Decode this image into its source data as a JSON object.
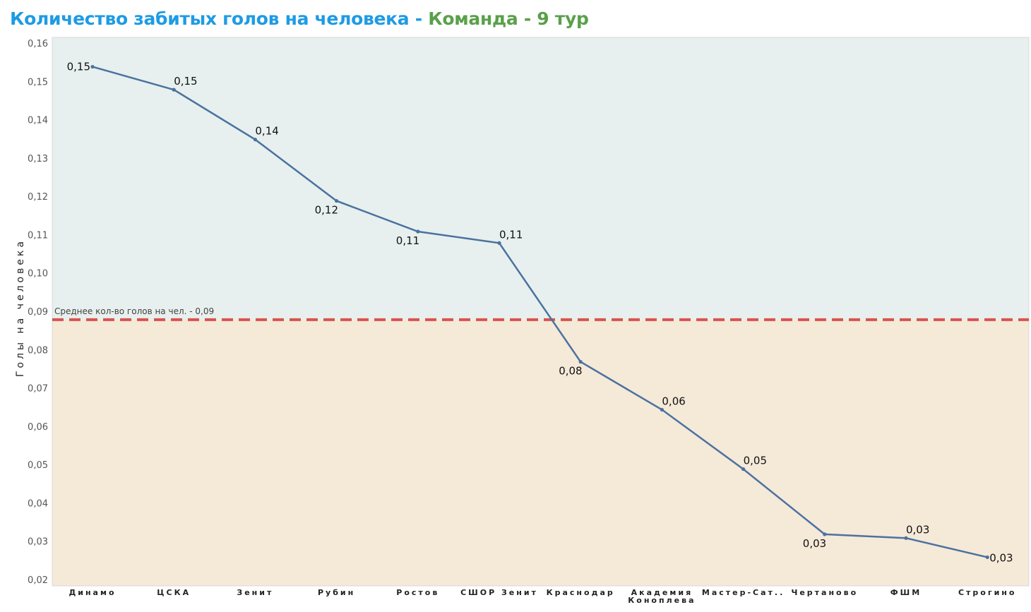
{
  "title": {
    "main": "Количество забитых голов на человека",
    "separator": " - ",
    "sub": "Команда - 9 тур"
  },
  "colors": {
    "title_main": "#1e9be4",
    "title_sub": "#5aa04a",
    "line": "#4a72a0",
    "reference_line": "#d9534f",
    "band_above": "#e7f0ee",
    "band_below": "#f5e9d8"
  },
  "chart_data": {
    "type": "line",
    "ylabel": "Голы на человека",
    "xlabel": "",
    "ylim": [
      0.02,
      0.16
    ],
    "yticks": [
      "0,02",
      "0,03",
      "0,04",
      "0,05",
      "0,06",
      "0,07",
      "0,08",
      "0,09",
      "0,10",
      "0,11",
      "0,12",
      "0,13",
      "0,14",
      "0,15",
      "0,16"
    ],
    "ytick_values": [
      0.02,
      0.03,
      0.04,
      0.05,
      0.06,
      0.07,
      0.08,
      0.09,
      0.1,
      0.11,
      0.12,
      0.13,
      0.14,
      0.15,
      0.16
    ],
    "categories": [
      "Динамо",
      "ЦСКА",
      "Зенит",
      "Рубин",
      "Ростов",
      "СШОР Зенит",
      "Краснодар",
      "Академия Коноплева",
      "Мастер-Сат..",
      "Чертаново",
      "ФШМ",
      "Строгино"
    ],
    "category_lines": [
      [
        "Динамо"
      ],
      [
        "ЦСКА"
      ],
      [
        "Зенит"
      ],
      [
        "Рубин"
      ],
      [
        "Ростов"
      ],
      [
        "СШОР Зенит"
      ],
      [
        "Краснодар"
      ],
      [
        "Академия",
        "Коноплева"
      ],
      [
        "Мастер-Сат.."
      ],
      [
        "Чертаново"
      ],
      [
        "ФШМ"
      ],
      [
        "Строгино"
      ]
    ],
    "values": [
      0.154,
      0.148,
      0.135,
      0.119,
      0.111,
      0.108,
      0.077,
      0.0645,
      0.049,
      0.032,
      0.031,
      0.026
    ],
    "data_labels": [
      "0,15",
      "0,15",
      "0,14",
      "0,12",
      "0,11",
      "0,11",
      "0,08",
      "0,06",
      "0,05",
      "0,03",
      "0,03",
      "0,03"
    ],
    "label_positions": [
      "left",
      "above",
      "above",
      "below",
      "below",
      "above",
      "below",
      "above",
      "above",
      "below",
      "above",
      "right"
    ],
    "reference_line": {
      "value": 0.088,
      "label": "Среднее кол-во голов на чел. - 0,09"
    },
    "grid": false,
    "legend": "none"
  }
}
